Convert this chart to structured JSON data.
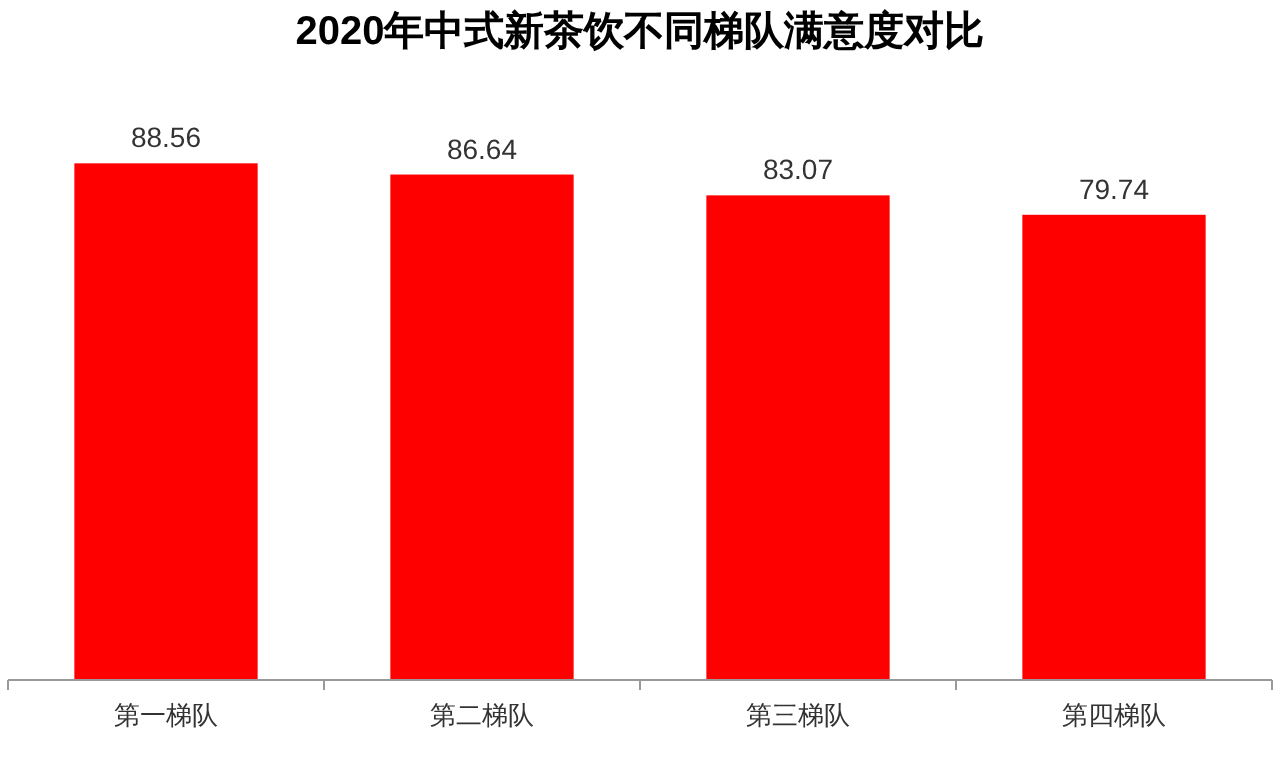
{
  "chart_data": {
    "type": "bar",
    "title": "2020年中式新茶饮不同梯队满意度对比",
    "categories": [
      "第一梯队",
      "第二梯队",
      "第三梯队",
      "第四梯队"
    ],
    "values": [
      88.56,
      86.64,
      83.07,
      79.74
    ],
    "color": "#ff0000",
    "data_labels": true
  }
}
